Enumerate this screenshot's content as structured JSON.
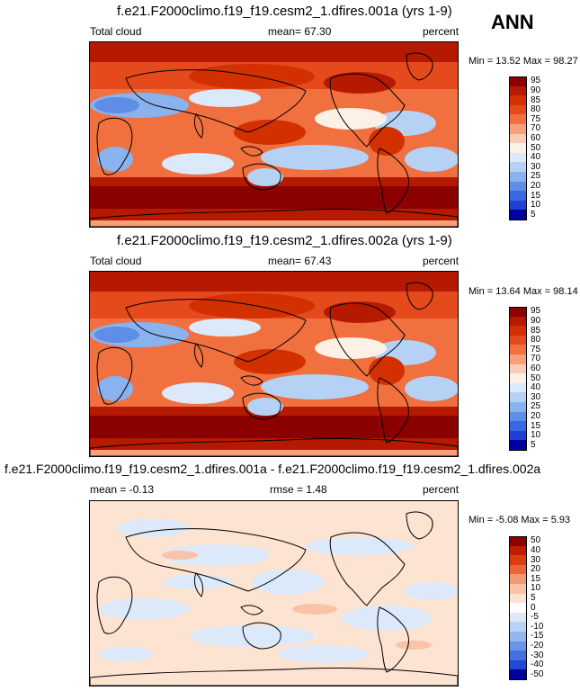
{
  "season": "ANN",
  "panels": [
    {
      "title": "f.e21.F2000climo.f19_f19.cesm2_1.dfires.001a (yrs 1-9)",
      "left_label": "Total cloud",
      "center_label": "mean=  67.30",
      "right_label": "percent",
      "minmax": "Min =  13.52 Max =  98.27"
    },
    {
      "title": "f.e21.F2000climo.f19_f19.cesm2_1.dfires.002a (yrs 1-9)",
      "left_label": "Total cloud",
      "center_label": "mean=  67.43",
      "right_label": "percent",
      "minmax": "Min =  13.64 Max =  98.14"
    },
    {
      "title": "f.e21.F2000climo.f19_f19.cesm2_1.dfires.001a - f.e21.F2000climo.f19_f19.cesm2_1.dfires.002a",
      "left_label": "mean =  -0.13",
      "center_label": "rmse =  1.48",
      "right_label": "percent",
      "minmax": "Min =  -5.08 Max =  5.93"
    }
  ],
  "chart_data": [
    {
      "type": "heatmap",
      "title": "f.e21.F2000climo.f19_f19.cesm2_1.dfires.001a (yrs 1-9)",
      "variable": "Total cloud",
      "units": "percent",
      "mean": 67.3,
      "min": 13.52,
      "max": 98.27,
      "colorbar_levels": [
        "95",
        "90",
        "85",
        "80",
        "75",
        "70",
        "60",
        "50",
        "40",
        "30",
        "25",
        "20",
        "15",
        "10",
        "5"
      ]
    },
    {
      "type": "heatmap",
      "title": "f.e21.F2000climo.f19_f19.cesm2_1.dfires.002a (yrs 1-9)",
      "variable": "Total cloud",
      "units": "percent",
      "mean": 67.43,
      "min": 13.64,
      "max": 98.14,
      "colorbar_levels": [
        "95",
        "90",
        "85",
        "80",
        "75",
        "70",
        "60",
        "50",
        "40",
        "30",
        "25",
        "20",
        "15",
        "10",
        "5"
      ]
    },
    {
      "type": "heatmap",
      "title": "f.e21.F2000climo.f19_f19.cesm2_1.dfires.001a - f.e21.F2000climo.f19_f19.cesm2_1.dfires.002a",
      "units": "percent",
      "mean": -0.13,
      "rmse": 1.48,
      "min": -5.08,
      "max": 5.93,
      "colorbar_levels": [
        "50",
        "40",
        "30",
        "20",
        "15",
        "10",
        "5",
        "0",
        "-5",
        "-10",
        "-15",
        "-20",
        "-30",
        "-40",
        "-50"
      ]
    }
  ],
  "colors": {
    "abs_scale": [
      "#8b0000",
      "#b51a00",
      "#d33000",
      "#e44a1c",
      "#f0703f",
      "#f7a07a",
      "#fbcdb4",
      "#fdf0e6",
      "#dbe9fa",
      "#b5d2f5",
      "#8ab2ee",
      "#5e8ee6",
      "#3a68e0",
      "#1f3fd6",
      "#0000a0"
    ],
    "diff_scale": [
      "#8b0000",
      "#c01d00",
      "#dd3b10",
      "#ec6535",
      "#f49a72",
      "#f8c3a6",
      "#fde3d2",
      "#ffffff",
      "#dbe9fa",
      "#b8d3f5",
      "#92b6ef",
      "#6a95e8",
      "#4470e0",
      "#234ad6",
      "#0000a0"
    ]
  }
}
